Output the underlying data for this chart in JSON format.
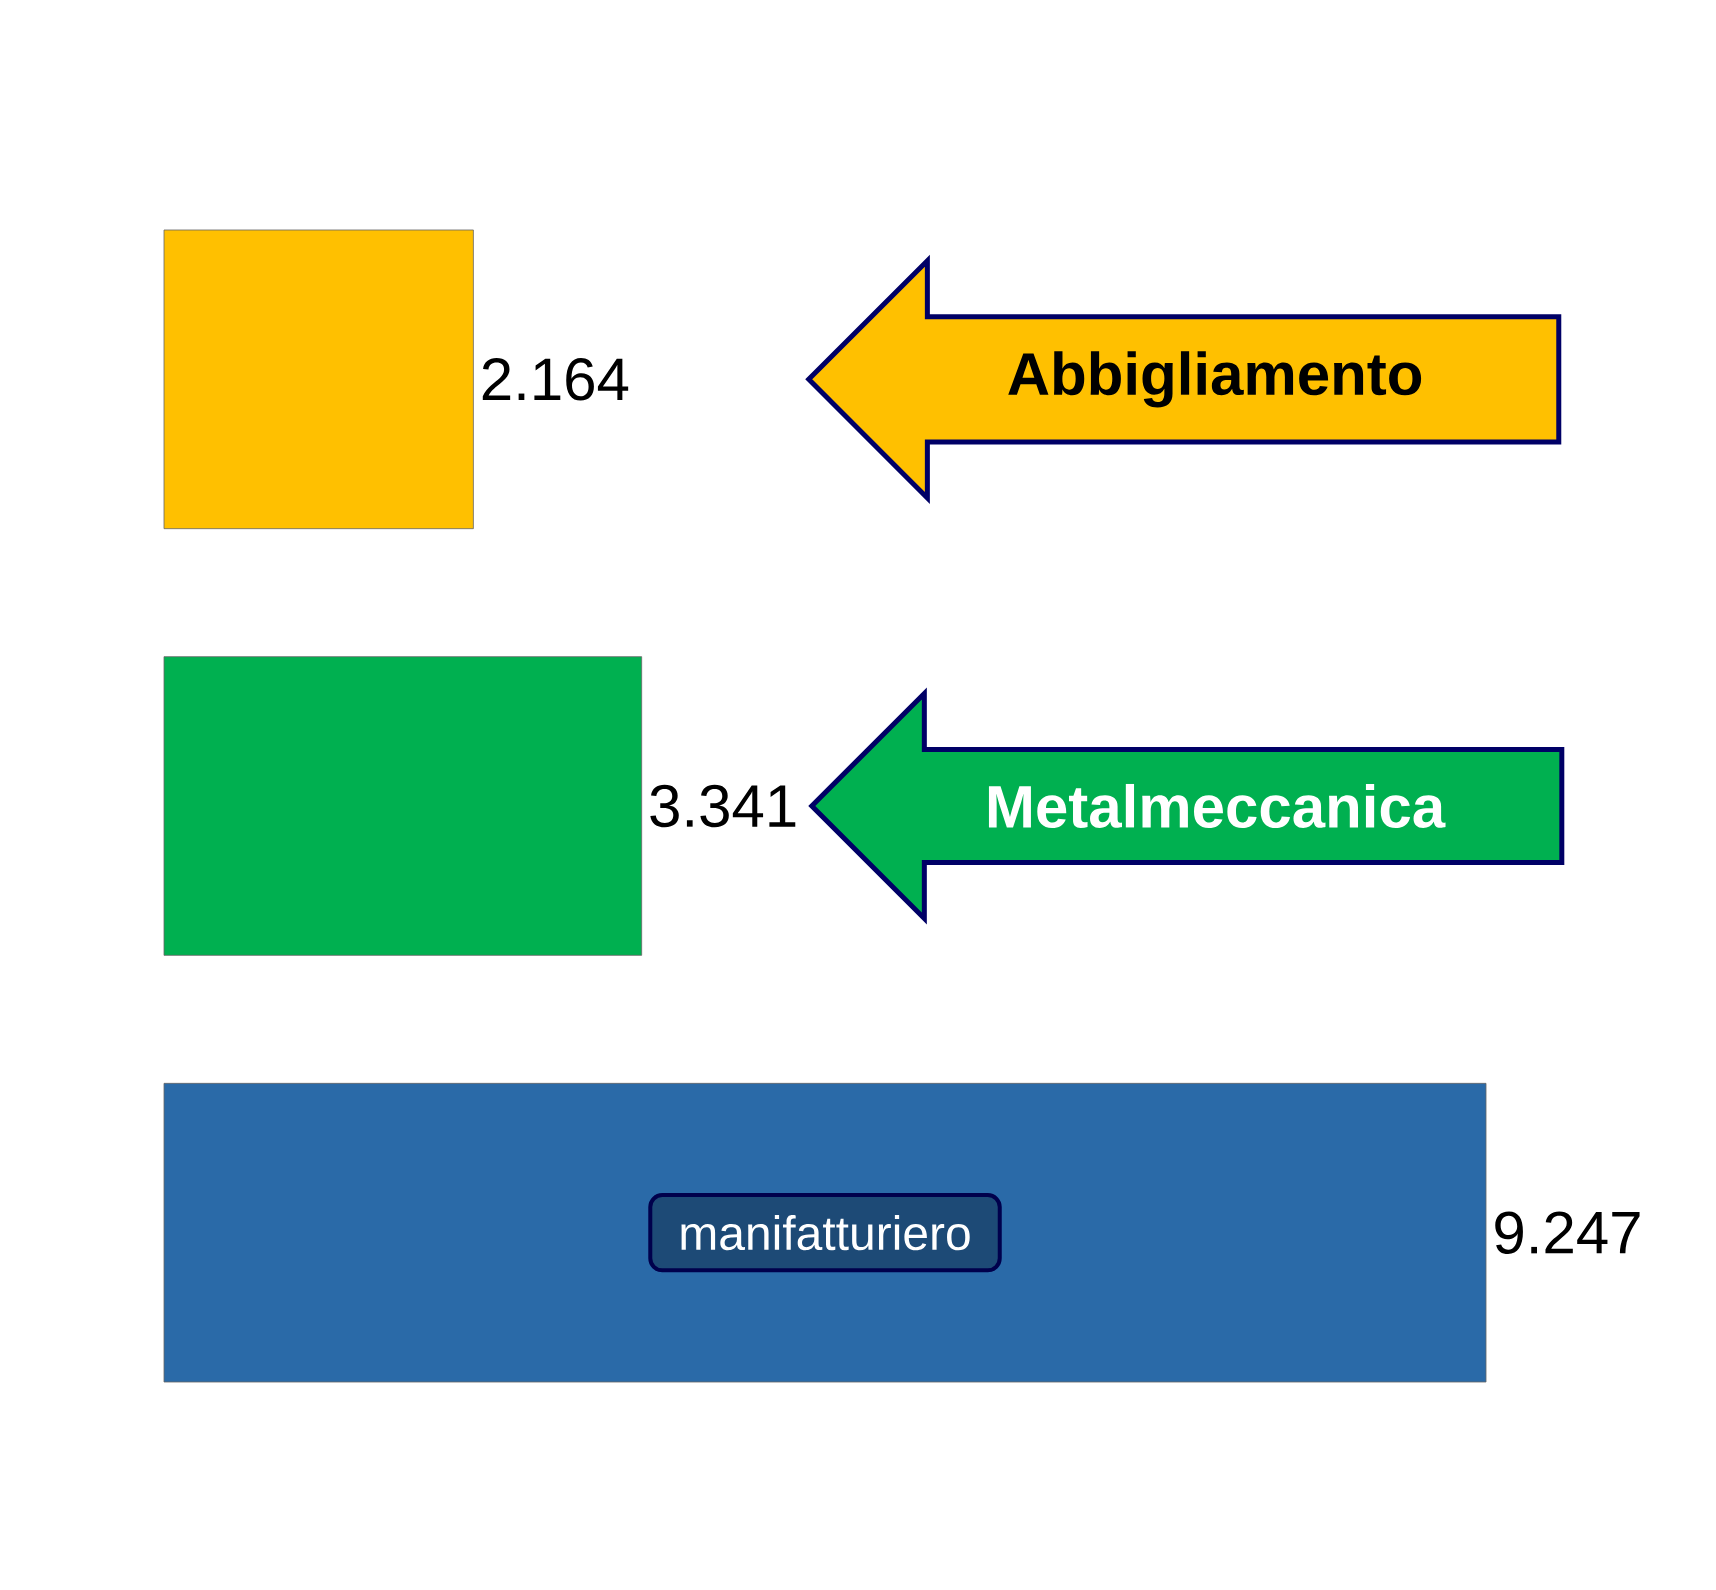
{
  "chart_data": {
    "type": "bar",
    "orientation": "horizontal",
    "categories": [
      "Abbigliamento",
      "Metalmeccanica",
      "manifatturiero"
    ],
    "values": [
      2164,
      3341,
      9247
    ],
    "colors": [
      "#ffc000",
      "#00b050",
      "#2a6aa8"
    ],
    "value_labels": [
      "2.164",
      "3.341",
      "9.247"
    ]
  }
}
